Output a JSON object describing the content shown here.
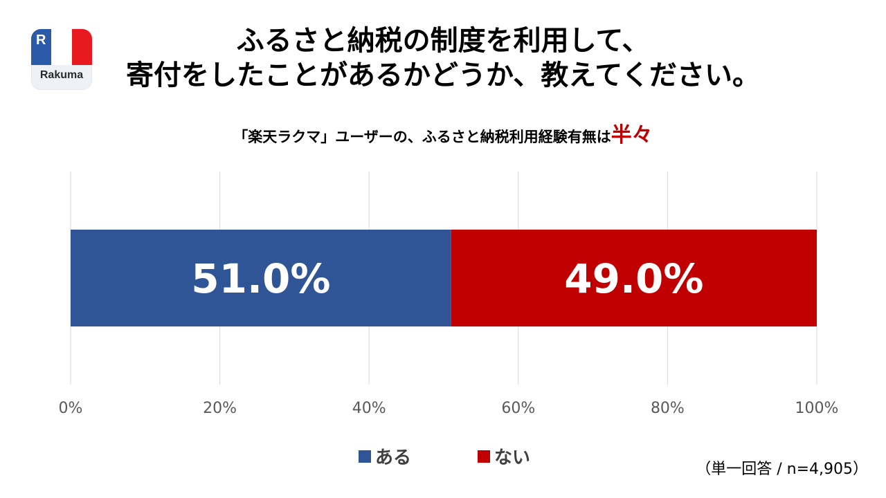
{
  "logo": {
    "text": "Rakuma",
    "mark": "R"
  },
  "title_lines": [
    "ふるさと納税の制度を利用して、",
    "寄付をしたことがあるかどうか、教えてください。"
  ],
  "subtitle": {
    "text": "「楽天ラクマ」ユーザーの、ふるさと納税利用経験有無は",
    "highlight": "半々"
  },
  "footnote": "（単一回答 / n=4,905）",
  "colors": {
    "aru": "#2f5597",
    "nai": "#c00000",
    "grid": "#d9d9d9",
    "tick": "#595959",
    "highlight": "#c00000"
  },
  "chart_data": {
    "type": "bar",
    "orientation": "horizontal",
    "stacked": true,
    "percent": true,
    "categories": [
      ""
    ],
    "series": [
      {
        "name": "ある",
        "values": [
          51.0
        ],
        "label": "51.0%",
        "color": "#2f5597"
      },
      {
        "name": "ない",
        "values": [
          49.0
        ],
        "label": "49.0%",
        "color": "#c00000"
      }
    ],
    "xlim": [
      0,
      100
    ],
    "xticks": [
      0,
      20,
      40,
      60,
      80,
      100
    ],
    "xtick_labels": [
      "0%",
      "20%",
      "40%",
      "60%",
      "80%",
      "100%"
    ],
    "grid": "vertical",
    "legend": "bottom-center"
  }
}
